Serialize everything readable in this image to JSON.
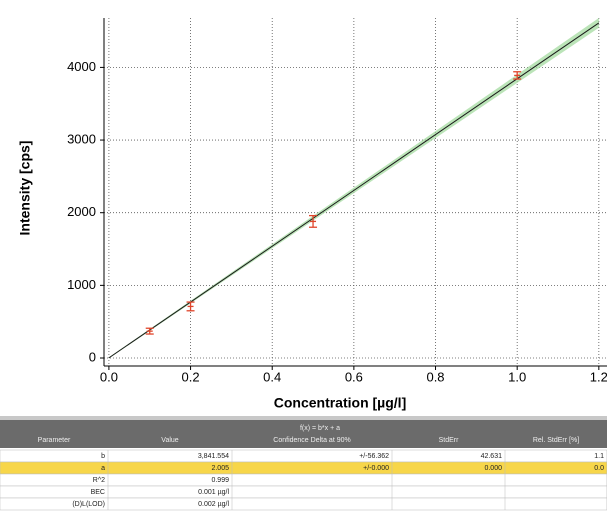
{
  "chart_data": {
    "type": "scatter",
    "x_label": "Concentration [µg/l]",
    "y_label": "Intensity [cps]",
    "x": [
      0.1,
      0.2,
      0.5,
      1.0
    ],
    "series": [
      {
        "color": "#e0452b",
        "values": [
          370,
          710,
          1880,
          3890
        ],
        "errors": [
          40,
          60,
          80,
          50
        ]
      }
    ],
    "fit": {
      "x": [
        0,
        1.2
      ],
      "values": [
        2,
        4612
      ],
      "color": "#1a1a1a",
      "band_color": "#9ed89a",
      "band_lower": [
        -6,
        4545
      ],
      "band_upper": [
        10,
        4680
      ]
    },
    "xlim": [
      -0.012,
      1.22
    ],
    "ylim": [
      -110,
      4680
    ],
    "xticks": [
      {
        "value": 0,
        "label": "0.0"
      },
      0.2,
      0.4,
      0.6,
      0.8,
      {
        "value": 1,
        "label": "1.0"
      },
      1.2
    ],
    "yticks": [
      0,
      1000,
      2000,
      3000,
      4000
    ],
    "grid": true
  },
  "table": {
    "title": "f(x) = b*x + a",
    "columns": [
      "Parameter",
      "Value",
      "Confidence Delta at 90%",
      "StdErr",
      "Rel. StdErr [%]"
    ],
    "rows": [
      [
        "b",
        "3,841.554",
        "+/-56.362",
        "42.631",
        "1.1"
      ],
      [
        "a",
        "2.005",
        "+/-0.000",
        "0.000",
        "0.0"
      ],
      [
        "R^2",
        "0.999"
      ],
      [
        "BEC",
        "0.001 µg/l"
      ],
      [
        "(D)L(LOD)",
        "0.002 µg/l"
      ]
    ],
    "highlight_row": 1
  }
}
